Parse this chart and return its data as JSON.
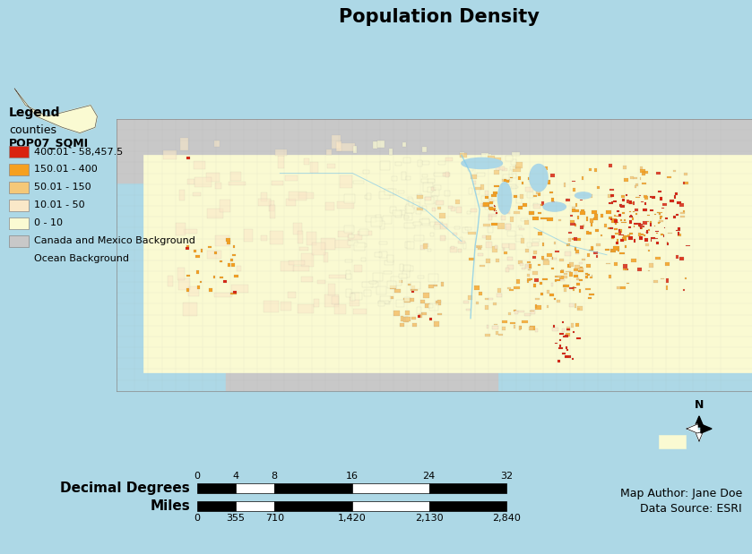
{
  "title": "Population Density",
  "title_fontsize": 15,
  "title_fontweight": "bold",
  "background_color": "#ADD8E6",
  "ocean_color": "#ADD8E6",
  "canada_mexico_color": "#C8C8C8",
  "us_base_color": "#FAFAD2",
  "legend_title1": "Legend",
  "legend_title2": "counties",
  "legend_title3": "POP07_SQMI",
  "legend_colors": [
    "#D9230F",
    "#F5A020",
    "#F5C878",
    "#FAE8C8",
    "#FAFAD2"
  ],
  "legend_labels": [
    "400.01 - 58,457.5",
    "150.01 - 400",
    "50.01 - 150",
    "10.01 - 50",
    "0 - 10"
  ],
  "canada_mexico_label": "Canada and Mexico Background",
  "ocean_label": "Ocean Background",
  "scale_bar_dd_label": "Decimal Degrees",
  "scale_bar_dd_ticks": [
    0,
    4,
    8,
    16,
    24,
    32
  ],
  "scale_bar_miles_label": "Miles",
  "scale_bar_miles_ticks": [
    0,
    355,
    710,
    1420,
    2130,
    2840
  ],
  "map_author": "Map Author: Jane Doe",
  "data_source": "Data Source: ESRI",
  "north_arrow_label": "N",
  "dd_segments": [
    [
      0,
      4,
      "black"
    ],
    [
      4,
      8,
      "white"
    ],
    [
      8,
      16,
      "black"
    ],
    [
      16,
      24,
      "white"
    ],
    [
      24,
      32,
      "black"
    ]
  ],
  "miles_segments": [
    [
      0,
      355,
      "black"
    ],
    [
      355,
      710,
      "white"
    ],
    [
      710,
      1420,
      "black"
    ],
    [
      1420,
      2130,
      "white"
    ],
    [
      2130,
      2840,
      "black"
    ]
  ]
}
